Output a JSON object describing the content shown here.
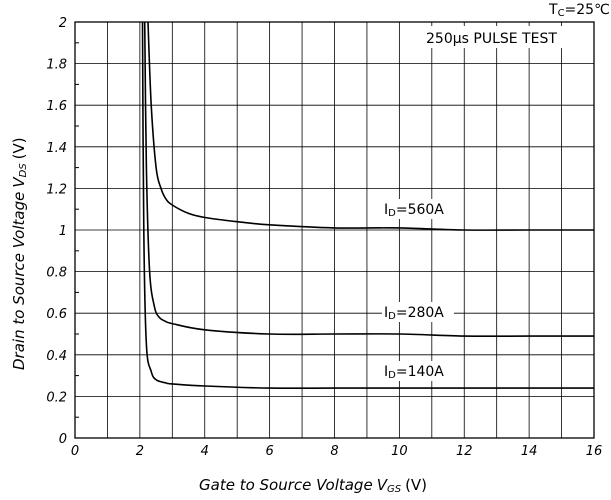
{
  "chart_data": {
    "type": "line",
    "xlabel": "Gate to Source Voltage",
    "xlabel_symbol": "V",
    "xlabel_subscript": "GS",
    "xlabel_unit": "(V)",
    "ylabel": "Drain to Source Voltage",
    "ylabel_symbol": "V",
    "ylabel_subscript": "DS",
    "ylabel_unit": "(V)",
    "xlim": [
      0,
      16
    ],
    "ylim": [
      0,
      2
    ],
    "x_ticks": [
      "0",
      "2",
      "4",
      "6",
      "8",
      "10",
      "12",
      "14",
      "16"
    ],
    "y_ticks": [
      "0",
      "0.2",
      "0.4",
      "0.6",
      "0.8",
      "1",
      "1.2",
      "1.4",
      "1.6",
      "1.8",
      "2"
    ],
    "grid": true,
    "annotations": {
      "temperature": "TC=25℃",
      "temperature_main": "T",
      "temperature_sub": "C",
      "temperature_rest": "=25℃",
      "pulse_test": "250μs PULSE TEST"
    },
    "series": [
      {
        "label": "ID=560A",
        "label_main": "I",
        "label_sub": "D",
        "label_rest": "=560A",
        "x": [
          2.25,
          2.35,
          2.5,
          2.65,
          2.8,
          3.0,
          3.5,
          4,
          5,
          6,
          8,
          10,
          12,
          14,
          16
        ],
        "y": [
          2.0,
          1.6,
          1.3,
          1.2,
          1.15,
          1.12,
          1.08,
          1.06,
          1.04,
          1.025,
          1.01,
          1.01,
          1.0,
          1.0,
          1.0
        ]
      },
      {
        "label": "ID=280A",
        "label_main": "I",
        "label_sub": "D",
        "label_rest": "=280A",
        "x": [
          2.15,
          2.2,
          2.3,
          2.45,
          2.6,
          2.8,
          3.0,
          4,
          6,
          8,
          10,
          12,
          14,
          16
        ],
        "y": [
          2.0,
          1.3,
          0.8,
          0.63,
          0.58,
          0.56,
          0.55,
          0.52,
          0.5,
          0.5,
          0.5,
          0.49,
          0.49,
          0.49
        ]
      },
      {
        "label": "ID=140A",
        "label_main": "I",
        "label_sub": "D",
        "label_rest": "=140A",
        "x": [
          2.08,
          2.12,
          2.2,
          2.35,
          2.5,
          2.8,
          3.0,
          4,
          6,
          8,
          10,
          12,
          14,
          16
        ],
        "y": [
          2.0,
          1.0,
          0.45,
          0.32,
          0.28,
          0.265,
          0.26,
          0.25,
          0.24,
          0.24,
          0.24,
          0.24,
          0.24,
          0.24
        ]
      }
    ]
  }
}
